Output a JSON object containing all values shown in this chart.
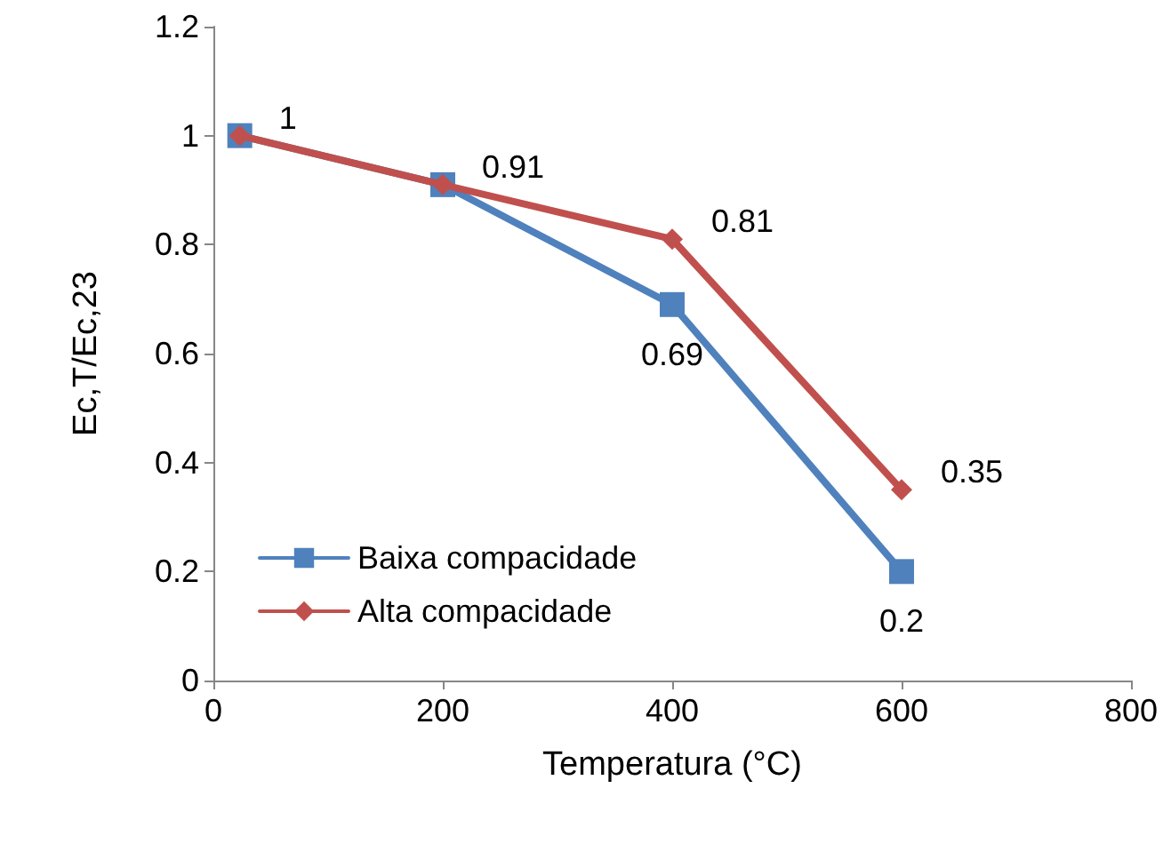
{
  "chart_data": {
    "type": "line",
    "xlabel": "Temperatura (°C)",
    "ylabel": "Ec,T/Ec,23",
    "x": [
      23,
      200,
      400,
      600
    ],
    "series": [
      {
        "name": "Baixa compacidade",
        "color": "#4f81bd",
        "marker": "square",
        "values": [
          1,
          0.91,
          0.69,
          0.2
        ],
        "value_labels": [
          null,
          null,
          "0.69",
          "0.2"
        ]
      },
      {
        "name": "Alta compacidade",
        "color": "#c0504d",
        "marker": "diamond",
        "values": [
          1,
          0.91,
          0.81,
          0.35
        ],
        "value_labels": [
          "1",
          "0.91",
          "0.81",
          "0.35"
        ]
      }
    ],
    "xlim": [
      0,
      800
    ],
    "xticks": [
      0,
      200,
      400,
      600,
      800
    ],
    "ylim": [
      0,
      1.2
    ],
    "yticks": [
      0,
      0.2,
      0.4,
      0.6,
      0.8,
      1,
      1.2
    ],
    "grid": false,
    "legend": "bottom left",
    "line_style": "solid"
  }
}
